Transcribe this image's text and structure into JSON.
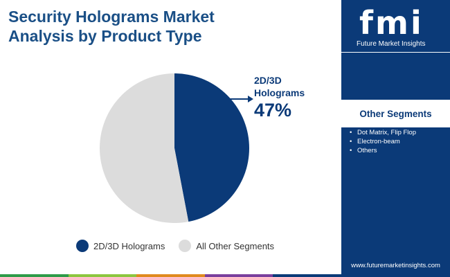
{
  "title": {
    "line1": "Security Holograms Market",
    "line2": "Analysis by Product Type"
  },
  "chart_data": {
    "type": "pie",
    "title": "Security Holograms Market Analysis by Product Type",
    "slices": [
      {
        "label": "2D/3D Holograms",
        "value": 47,
        "color": "#0b3a78"
      },
      {
        "label": "All Other Segments",
        "value": 53,
        "color": "#dcdcdc"
      }
    ],
    "callout": {
      "label_line1": "2D/3D",
      "label_line2": "Holograms",
      "value_text": "47%"
    },
    "legend_position": "bottom"
  },
  "legend": {
    "items": [
      "2D/3D Holograms",
      "All Other Segments"
    ]
  },
  "sidebar": {
    "logo_text": "fmi",
    "logo_caption": "Future Market Insights",
    "segments_title": "Other Segments",
    "segments": [
      "Dot Matrix, Flip Flop",
      "Electron-beam",
      "Others"
    ],
    "website": "www.futuremarketinsights.com"
  },
  "colors": {
    "brand_navy": "#0b3a78",
    "title_blue": "#1a4f86",
    "other_gray": "#dcdcdc",
    "bar_segments": [
      "#2e9b49",
      "#8cc63f",
      "#e08a1e",
      "#7a3f9d",
      "#0b3a78"
    ]
  }
}
